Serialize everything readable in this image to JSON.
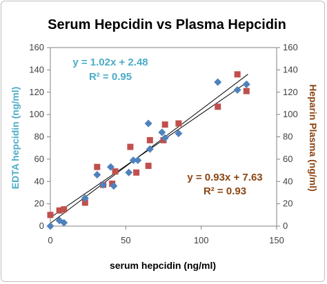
{
  "chart_data": {
    "type": "scatter",
    "title": "Serum Hepcidin vs Plasma Hepcidin",
    "xlabel": "serum hepcidin (ng/ml)",
    "ylabel_left": "EDTA hepcidin (ng/ml)",
    "ylabel_right": "Heparin Plasma (ng/ml)",
    "xlim": [
      0,
      150
    ],
    "ylim": [
      0,
      160
    ],
    "x_ticks": [
      "0",
      "50",
      "100",
      "150"
    ],
    "y_ticks": [
      "0",
      "20",
      "40",
      "60",
      "80",
      "100",
      "120",
      "140",
      "160"
    ],
    "grid": false,
    "colors": {
      "edta": "#4f81bd",
      "heparin": "#c0504d",
      "edta_text": "#4bacc6",
      "heparin_text": "#8b4513",
      "trend": "#000000"
    },
    "series": [
      {
        "name": "EDTA hepcidin (ng/ml)",
        "marker": "diamond",
        "points": [
          [
            0,
            0
          ],
          [
            6,
            5
          ],
          [
            9,
            3
          ],
          [
            23,
            25
          ],
          [
            31,
            46
          ],
          [
            35,
            37
          ],
          [
            40,
            53
          ],
          [
            42,
            36
          ],
          [
            52,
            48
          ],
          [
            55,
            59
          ],
          [
            58,
            59
          ],
          [
            65,
            92
          ],
          [
            66,
            69
          ],
          [
            74,
            84
          ],
          [
            76,
            79
          ],
          [
            85,
            83
          ],
          [
            111,
            129
          ],
          [
            124,
            122
          ],
          [
            130,
            127
          ]
        ],
        "trendline": {
          "slope": 1.02,
          "intercept": 2.48
        },
        "equation": "y = 1.02x + 2.48",
        "r2": "R² = 0.95"
      },
      {
        "name": "Heparin Plasma (ng/ml)",
        "marker": "square",
        "points": [
          [
            0,
            10
          ],
          [
            6,
            14
          ],
          [
            9,
            15
          ],
          [
            23,
            21
          ],
          [
            31,
            53
          ],
          [
            35,
            37
          ],
          [
            41,
            38
          ],
          [
            43,
            49
          ],
          [
            53,
            71
          ],
          [
            57,
            48
          ],
          [
            65,
            54
          ],
          [
            66,
            77
          ],
          [
            75,
            77
          ],
          [
            76,
            91
          ],
          [
            85,
            92
          ],
          [
            111,
            107
          ],
          [
            124,
            136
          ],
          [
            130,
            121
          ]
        ],
        "trendline": {
          "slope": 0.93,
          "intercept": 7.63
        },
        "equation": "y = 0.93x + 7.63",
        "r2": "R² = 0.93"
      }
    ]
  }
}
